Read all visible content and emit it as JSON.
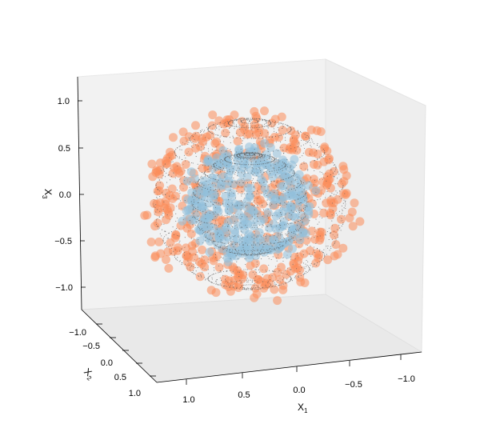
{
  "chart_data": {
    "type": "scatter3d",
    "title": "",
    "xlabel": "X",
    "xlabel_sub": "1",
    "ylabel": "X",
    "ylabel_sub": "2",
    "zlabel": "X",
    "zlabel_sub": "3",
    "xlim": [
      -1.2,
      1.2
    ],
    "ylim": [
      -1.2,
      1.2
    ],
    "zlim": [
      -1.2,
      1.2
    ],
    "grid": false,
    "x_ticks": [
      "1.0",
      "0.5",
      "0.0",
      "−0.5",
      "−1.0"
    ],
    "y_ticks": [
      "−1.0",
      "−0.5",
      "0.0",
      "0.5",
      "1.0"
    ],
    "z_ticks": [
      "1.0",
      "0.5",
      "0.0",
      "−0.5",
      "−1.0"
    ],
    "series": [
      {
        "kind": "scatter",
        "shell": "outer",
        "radius": 1.0,
        "noise": 0.09,
        "color": "#fc8d59",
        "count": 420
      },
      {
        "kind": "scatter",
        "shell": "inner",
        "radius": 0.6,
        "noise": 0.06,
        "color": "#91bfdb",
        "count": 360
      },
      {
        "kind": "wireframe",
        "shell": "outer-wire",
        "radius": 1.0,
        "color": "#555555"
      },
      {
        "kind": "wireframe",
        "shell": "inner-wire",
        "radius": 0.6,
        "color": "#555555"
      }
    ],
    "colors": {
      "pane": "#f2f2f2",
      "pane_edge": "#e6e6e6",
      "axis": "#000000"
    }
  }
}
